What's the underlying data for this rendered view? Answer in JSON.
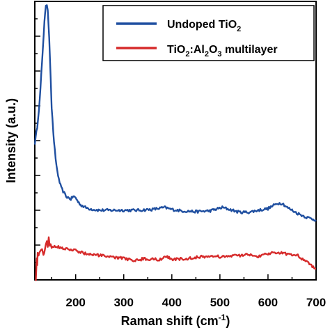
{
  "chart_data": {
    "type": "line",
    "xlabel_main": "Raman shift (cm",
    "xlabel_sup": "-1",
    "xlabel_end": ")",
    "ylabel": "Intensity (a.u.)",
    "xlim": [
      115,
      700
    ],
    "ylim": [
      0,
      100
    ],
    "x_ticks": [
      "200",
      "300",
      "400",
      "500",
      "600",
      "700"
    ],
    "y_axis_numeric_labels": false,
    "grid": false,
    "legend_position": "top-right",
    "legend": {
      "entry1_main": "Undoped TiO",
      "entry1_sub": "2",
      "entry2_a": "TiO",
      "entry2_sub1": "2",
      "entry2_b": ":Al",
      "entry2_sub2": "2",
      "entry2_c": "O",
      "entry2_sub3": "3",
      "entry2_d": " multilayer"
    },
    "series": [
      {
        "color": "#1f4fa0",
        "x": [
          115,
          120,
          125,
          130,
          135,
          138,
          140,
          142,
          145,
          148,
          150,
          155,
          160,
          165,
          170,
          180,
          190,
          195,
          200,
          205,
          210,
          220,
          230,
          240,
          250,
          270,
          300,
          330,
          360,
          385,
          400,
          420,
          450,
          480,
          505,
          520,
          540,
          560,
          580,
          600,
          620,
          630,
          640,
          660,
          680,
          700
        ],
        "y": [
          49,
          55,
          64,
          78,
          93,
          98,
          99,
          97,
          87,
          72,
          62,
          49,
          41,
          36,
          33,
          30,
          29,
          30,
          29.5,
          28,
          27,
          26,
          25.5,
          25.2,
          25,
          25,
          25,
          25,
          25.3,
          26,
          25.3,
          24.8,
          24.5,
          24.8,
          26,
          25.3,
          24.3,
          24.3,
          25,
          25.6,
          27.5,
          27.5,
          26,
          24,
          22.5,
          21.5
        ]
      },
      {
        "color": "#d62b2b",
        "x": [
          117,
          119,
          120,
          121,
          123,
          126,
          130,
          133,
          136,
          138,
          140,
          142,
          144,
          146,
          148,
          150,
          153,
          156,
          160,
          170,
          180,
          190,
          200,
          220,
          240,
          260,
          280,
          300,
          320,
          340,
          360,
          380,
          385,
          400,
          420,
          440,
          460,
          480,
          500,
          520,
          540,
          560,
          580,
          600,
          620,
          640,
          660,
          680,
          700
        ],
        "y": [
          0,
          8,
          5,
          10,
          9,
          10,
          11,
          9,
          11,
          13,
          14,
          12,
          15,
          12,
          13,
          11,
          12,
          12,
          12,
          11.5,
          11,
          11,
          10.5,
          9.5,
          9,
          8.5,
          8,
          7.8,
          7,
          7.5,
          7.5,
          7.3,
          8.5,
          7.5,
          7.5,
          7.8,
          8.3,
          8.5,
          8.3,
          8.5,
          8.8,
          9,
          8.5,
          9.3,
          10,
          9.3,
          9,
          6.5,
          4
        ]
      }
    ]
  }
}
